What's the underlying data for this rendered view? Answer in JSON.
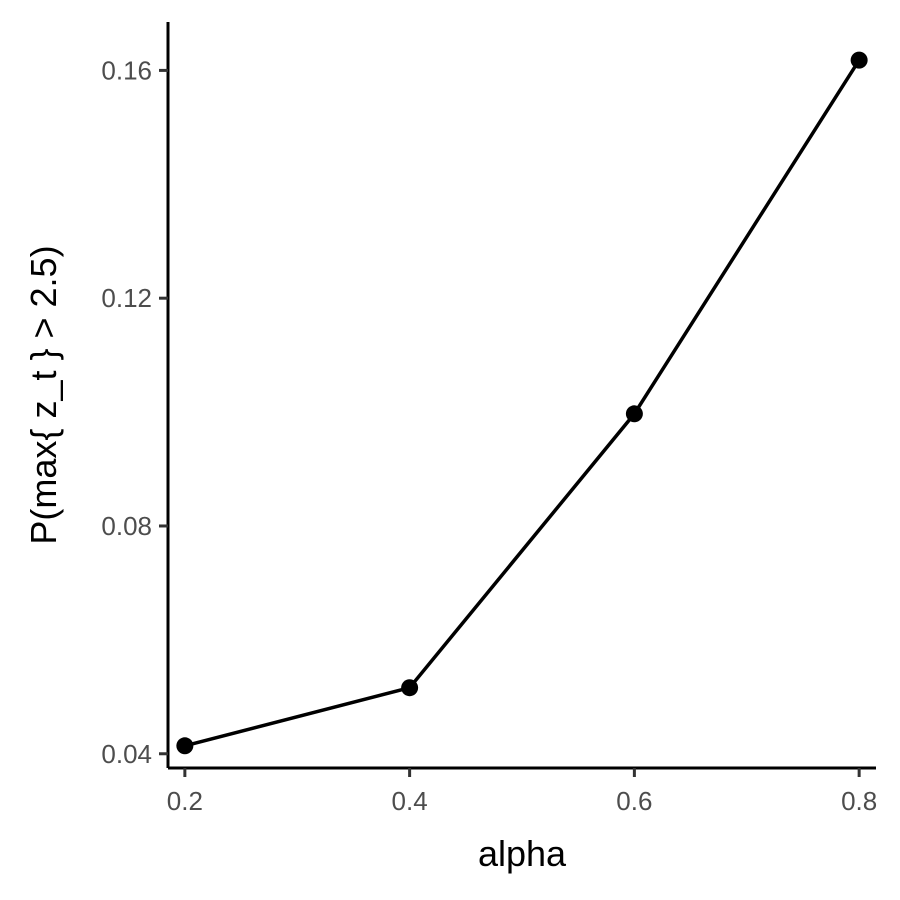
{
  "chart_data": {
    "type": "line",
    "title": "",
    "xlabel": "alpha",
    "ylabel": "P(max{ z_t } > 2.5)",
    "x": [
      0.2,
      0.4,
      0.6,
      0.8
    ],
    "series": [
      {
        "values": [
          0.0414,
          0.0516,
          0.0997,
          0.1618
        ]
      }
    ],
    "xlim": [
      0.185,
      0.815
    ],
    "ylim": [
      0.0375,
      0.1685
    ],
    "xticks": [
      0.2,
      0.4,
      0.6,
      0.8
    ],
    "xtick_labels": [
      "0.2",
      "0.4",
      "0.6",
      "0.8"
    ],
    "yticks": [
      0.04,
      0.08,
      0.12,
      0.16
    ],
    "ytick_labels": [
      "0.04",
      "0.08",
      "0.12",
      "0.16"
    ],
    "grid": false,
    "legend": "none",
    "colors": {
      "line": "#000000",
      "points": "#000000",
      "axes": "#000000",
      "tick_labels": "#4d4d4d"
    }
  }
}
